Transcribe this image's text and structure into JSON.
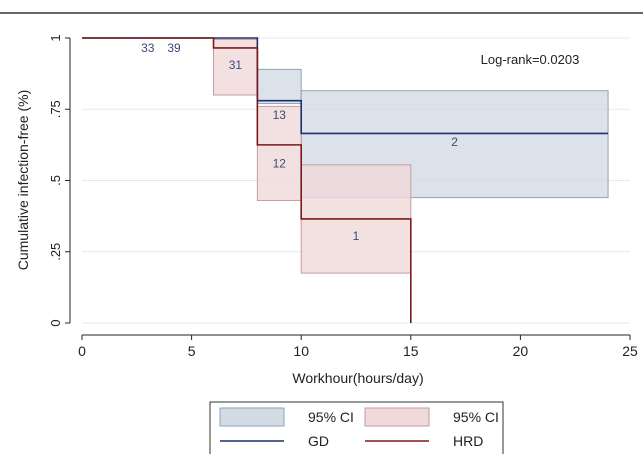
{
  "chart_data": {
    "type": "line",
    "subtype": "kaplan-meier-step",
    "xlabel": "Workhour(hours/day)",
    "ylabel": "Cumulative infection-free (%)",
    "xlim": [
      0,
      25
    ],
    "ylim": [
      0,
      1
    ],
    "xticks": [
      {
        "value": 0,
        "label": "0"
      },
      {
        "value": 5,
        "label": "5"
      },
      {
        "value": 10,
        "label": "10"
      },
      {
        "value": 15,
        "label": "15"
      },
      {
        "value": 20,
        "label": "20"
      },
      {
        "value": 25,
        "label": "25"
      }
    ],
    "yticks": [
      {
        "value": 0,
        "label": "0"
      },
      {
        "value": 0.25,
        "label": ".25"
      },
      {
        "value": 0.5,
        "label": ".5"
      },
      {
        "value": 0.75,
        "label": ".75"
      },
      {
        "value": 1,
        "label": "1"
      }
    ],
    "grid": "horizontal",
    "annotation": "Log-rank=0.0203",
    "series": [
      {
        "name": "GD",
        "color": "#1f2f6e",
        "ci_color": "#d2dbe3",
        "ci_stroke": "#8ea3bd",
        "steps": [
          {
            "x0": 0,
            "x1": 8,
            "y": 1.0,
            "lo": 1.0,
            "hi": 1.0
          },
          {
            "x0": 8,
            "x1": 10,
            "y": 0.78,
            "lo": 0.77,
            "hi": 0.89
          },
          {
            "x0": 10,
            "x1": 24,
            "y": 0.665,
            "lo": 0.44,
            "hi": 0.815
          }
        ],
        "labels": [
          {
            "x": 4.2,
            "y": 0.99,
            "text": "39"
          },
          {
            "x": 9.0,
            "y": 0.755,
            "text": "13"
          },
          {
            "x": 17.0,
            "y": 0.66,
            "text": "2"
          }
        ]
      },
      {
        "name": "HRD",
        "color": "#7a1a1a",
        "ci_color": "#f0d9db",
        "ci_stroke": "#c99a9e",
        "steps": [
          {
            "x0": 0,
            "x1": 6,
            "y": 1.0,
            "lo": 1.0,
            "hi": 1.0
          },
          {
            "x0": 6,
            "x1": 8,
            "y": 0.965,
            "lo": 0.8,
            "hi": 0.995
          },
          {
            "x0": 8,
            "x1": 10,
            "y": 0.625,
            "lo": 0.43,
            "hi": 0.76
          },
          {
            "x0": 10,
            "x1": 15,
            "y": 0.365,
            "lo": 0.175,
            "hi": 0.555
          }
        ],
        "drop_to_zero_at": 15,
        "labels": [
          {
            "x": 3.0,
            "y": 0.99,
            "text": "33"
          },
          {
            "x": 7.0,
            "y": 0.93,
            "text": "31"
          },
          {
            "x": 9.0,
            "y": 0.585,
            "text": "12"
          },
          {
            "x": 12.5,
            "y": 0.33,
            "text": "1"
          }
        ]
      }
    ],
    "legend": {
      "placement": "bottom",
      "entries": [
        {
          "label": "95% CI",
          "kind": "ci",
          "series": "GD"
        },
        {
          "label": "95% CI",
          "kind": "ci",
          "series": "HRD"
        },
        {
          "label": "GD",
          "kind": "line",
          "series": "GD"
        },
        {
          "label": "HRD",
          "kind": "line",
          "series": "HRD"
        }
      ]
    }
  }
}
